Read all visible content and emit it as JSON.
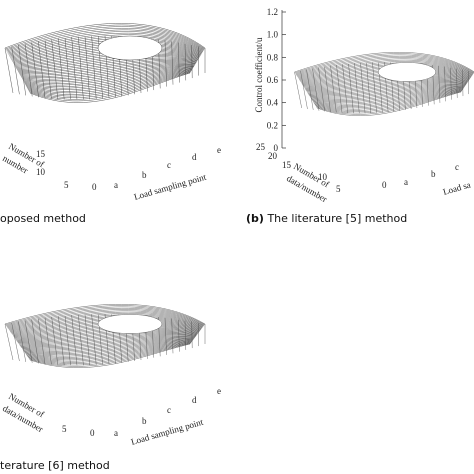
{
  "panel_a": {
    "caption": "oposed method",
    "depth_label_1": "Number of",
    "depth_label_2": "number",
    "depth_ticks": [
      "15",
      "10",
      "5",
      "0"
    ],
    "x_ticks": [
      "a",
      "b",
      "c",
      "d",
      "e"
    ],
    "x_label": "Load sampling point"
  },
  "panel_b": {
    "caption_tag": "(b)",
    "caption": "The literature [5] method",
    "y_label": "Control coefficient/u",
    "y_ticks": [
      "1.2",
      "1.0",
      "0.8",
      "0.6",
      "0.4",
      "0.2",
      "0"
    ],
    "depth_label_1": "Number of",
    "depth_label_2": "data/number",
    "depth_ticks": [
      "25",
      "20",
      "15",
      "10",
      "5",
      "0"
    ],
    "x_ticks": [
      "a",
      "b",
      "c"
    ],
    "x_label": "Load sa"
  },
  "panel_c": {
    "caption": "terature [6] method",
    "depth_label_1": "Number of",
    "depth_label_2": "data/number",
    "depth_ticks": [
      "5",
      "0"
    ],
    "x_ticks": [
      "a",
      "b",
      "c",
      "d",
      "e"
    ],
    "x_label": "Load sampling point"
  }
}
